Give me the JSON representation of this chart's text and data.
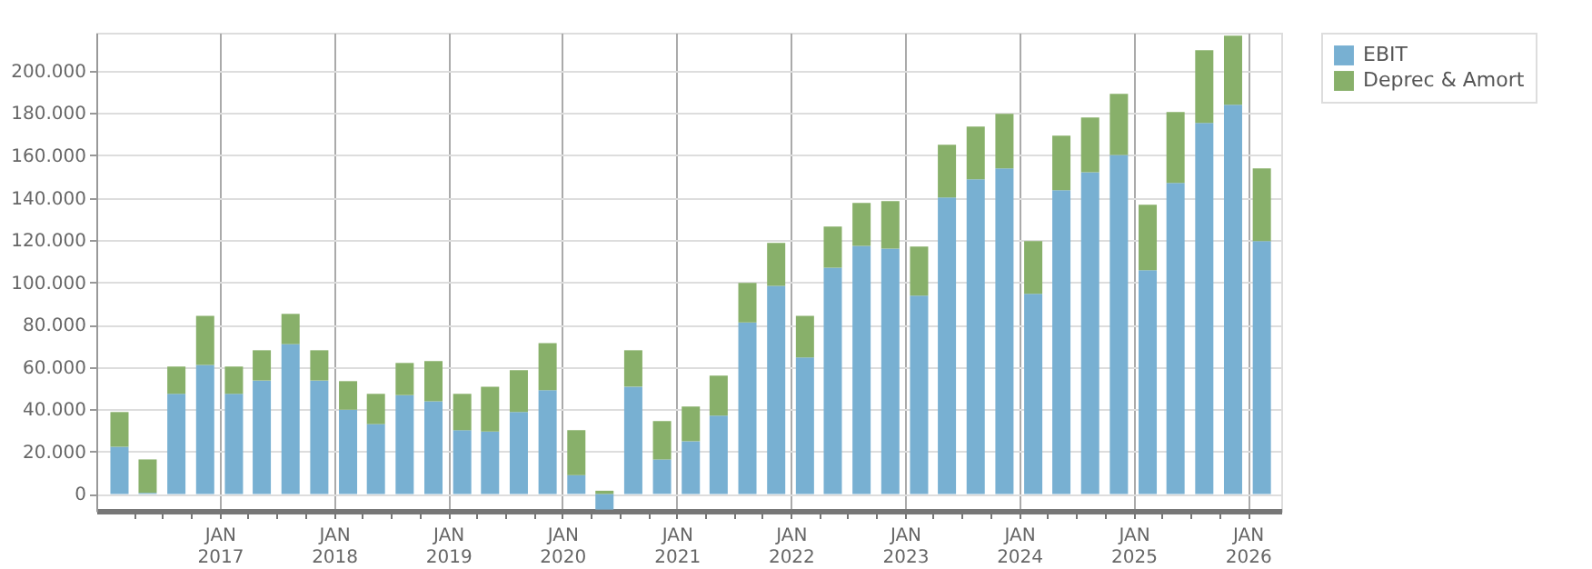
{
  "chart_data": {
    "type": "bar",
    "stacked": true,
    "x": [
      "2016-02-15",
      "2016-05-15",
      "2016-08-15",
      "2016-11-15",
      "2017-02-15",
      "2017-05-15",
      "2017-08-15",
      "2017-11-15",
      "2018-02-15",
      "2018-05-15",
      "2018-08-15",
      "2018-11-15",
      "2019-02-15",
      "2019-05-15",
      "2019-08-15",
      "2019-11-15",
      "2020-02-15",
      "2020-05-15",
      "2020-08-15",
      "2020-11-15",
      "2021-02-15",
      "2021-05-15",
      "2021-08-15",
      "2021-11-15",
      "2022-02-15",
      "2022-05-15",
      "2022-08-15",
      "2022-11-15",
      "2023-02-15",
      "2023-05-15",
      "2023-08-15",
      "2023-11-15",
      "2024-02-15",
      "2024-05-15",
      "2024-08-15",
      "2024-11-15",
      "2025-02-15",
      "2025-05-15",
      "2025-08-15",
      "2025-11-15",
      "2026-02-15"
    ],
    "series": [
      {
        "name": "EBIT",
        "color": "#78b0d2",
        "values": [
          22300,
          500,
          47300,
          61000,
          47300,
          53600,
          70800,
          53600,
          39800,
          33000,
          46700,
          43800,
          30100,
          29500,
          38700,
          49000,
          8900,
          -7400,
          50700,
          16300,
          24900,
          37000,
          81100,
          98300,
          64500,
          106900,
          117200,
          116000,
          93700,
          140100,
          148700,
          153900,
          94600,
          143600,
          152100,
          160200,
          105700,
          147000,
          175400,
          184000,
          119500
        ]
      },
      {
        "name": "Deprec & Amort",
        "color": "#88b06a",
        "values": [
          16400,
          15800,
          12900,
          23200,
          12900,
          14300,
          14300,
          14300,
          13500,
          14300,
          15200,
          19000,
          17200,
          21200,
          19800,
          22300,
          21200,
          1500,
          17200,
          18100,
          16400,
          18900,
          18600,
          20300,
          19700,
          19500,
          20300,
          22400,
          23200,
          24900,
          24900,
          25800,
          24900,
          25700,
          25800,
          28900,
          31000,
          33500,
          34300,
          32600,
          34400
        ]
      }
    ],
    "xlim": [
      "2016-01-01",
      "2026-03-20"
    ],
    "xticks": [
      {
        "value": "2016-04-01",
        "label": null
      },
      {
        "value": "2016-07-01",
        "label": null
      },
      {
        "value": "2016-10-01",
        "label": null
      },
      {
        "value": "2017-01-01",
        "label": "JAN 2017"
      },
      {
        "value": "2017-04-01",
        "label": null
      },
      {
        "value": "2017-07-01",
        "label": null
      },
      {
        "value": "2017-10-01",
        "label": null
      },
      {
        "value": "2018-01-01",
        "label": "JAN 2018"
      },
      {
        "value": "2018-04-01",
        "label": null
      },
      {
        "value": "2018-07-01",
        "label": null
      },
      {
        "value": "2018-10-01",
        "label": null
      },
      {
        "value": "2019-01-01",
        "label": "JAN 2019"
      },
      {
        "value": "2019-04-01",
        "label": null
      },
      {
        "value": "2019-07-01",
        "label": null
      },
      {
        "value": "2019-10-01",
        "label": null
      },
      {
        "value": "2020-01-01",
        "label": "JAN 2020"
      },
      {
        "value": "2020-04-01",
        "label": null
      },
      {
        "value": "2020-07-01",
        "label": null
      },
      {
        "value": "2020-10-01",
        "label": null
      },
      {
        "value": "2021-01-01",
        "label": "JAN 2021"
      },
      {
        "value": "2021-04-01",
        "label": null
      },
      {
        "value": "2021-07-01",
        "label": null
      },
      {
        "value": "2021-10-01",
        "label": null
      },
      {
        "value": "2022-01-01",
        "label": "JAN 2022"
      },
      {
        "value": "2022-04-01",
        "label": null
      },
      {
        "value": "2022-07-01",
        "label": null
      },
      {
        "value": "2022-10-01",
        "label": null
      },
      {
        "value": "2023-01-01",
        "label": "JAN 2023"
      },
      {
        "value": "2023-04-01",
        "label": null
      },
      {
        "value": "2023-07-01",
        "label": null
      },
      {
        "value": "2023-10-01",
        "label": null
      },
      {
        "value": "2024-01-01",
        "label": "JAN 2024"
      },
      {
        "value": "2024-04-01",
        "label": null
      },
      {
        "value": "2024-07-01",
        "label": null
      },
      {
        "value": "2024-10-01",
        "label": null
      },
      {
        "value": "2025-01-01",
        "label": "JAN 2025"
      },
      {
        "value": "2025-04-01",
        "label": null
      },
      {
        "value": "2025-07-01",
        "label": null
      },
      {
        "value": "2025-10-01",
        "label": null
      },
      {
        "value": "2026-01-01",
        "label": "JAN 2026"
      }
    ],
    "ylim": [
      -8000,
      218000
    ],
    "yticks": [
      0,
      {
        "value": 20000,
        "label": "20.000"
      },
      {
        "value": 40000,
        "label": "40.000"
      },
      {
        "value": 60000,
        "label": "60.000"
      },
      {
        "value": 80000,
        "label": "80.000"
      },
      {
        "value": 100000,
        "label": "100.000"
      },
      {
        "value": 120000,
        "label": "120.000"
      },
      {
        "value": 140000,
        "label": "140.000"
      },
      {
        "value": 160000,
        "label": "160.000"
      },
      {
        "value": 180000,
        "label": "180.000"
      },
      {
        "value": 200000,
        "label": "200.000"
      }
    ],
    "grid": true,
    "legend": "right"
  }
}
